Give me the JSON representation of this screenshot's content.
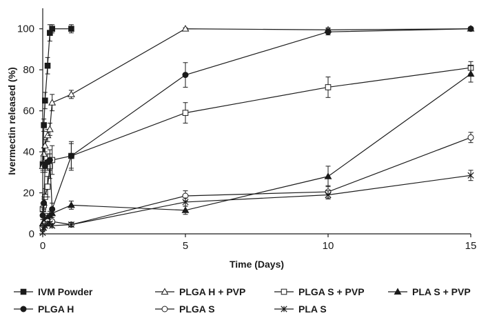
{
  "chart_data": {
    "type": "line",
    "xlabel": "Time (Days)",
    "ylabel": "Ivermectin released (%)",
    "xlim": [
      0,
      15
    ],
    "ylim": [
      0,
      110
    ],
    "xticks": [
      "0",
      "5",
      "10",
      "15"
    ],
    "yticks": [
      "0",
      "20",
      "40",
      "60",
      "80",
      "100"
    ],
    "grid": false,
    "legend_position": "bottom",
    "series": [
      {
        "name": "IVM Powder",
        "marker": "filled-square",
        "x": [
          0,
          0.04,
          0.08,
          0.17,
          0.25,
          0.33,
          1
        ],
        "y": [
          34,
          53,
          65,
          82,
          98,
          100,
          100
        ],
        "err": [
          3,
          3,
          4,
          4,
          4,
          2,
          2
        ]
      },
      {
        "name": "PLGA H + PVP",
        "marker": "open-triangle",
        "x": [
          0,
          0.04,
          0.08,
          0.17,
          0.25,
          0.33,
          1,
          5,
          10,
          15
        ],
        "y": [
          33,
          39,
          43,
          48,
          51,
          64,
          68,
          100,
          99.5,
          100
        ],
        "err": [
          3,
          3,
          3,
          3,
          3,
          4,
          2,
          0.5,
          1,
          0.5
        ]
      },
      {
        "name": "PLGA S + PVP",
        "marker": "open-square",
        "x": [
          0,
          0.04,
          0.08,
          0.17,
          0.25,
          0.33,
          1,
          5,
          10,
          15
        ],
        "y": [
          12,
          14,
          18,
          23,
          33,
          36,
          38,
          59,
          71.5,
          81
        ],
        "err": [
          3,
          3,
          4,
          5,
          6,
          7,
          6,
          5,
          5,
          3
        ]
      },
      {
        "name": "PLA S + PVP",
        "marker": "filled-triangle",
        "x": [
          0,
          0.04,
          0.08,
          0.17,
          0.25,
          0.33,
          1,
          5,
          10,
          15
        ],
        "y": [
          5,
          6,
          7,
          8,
          9,
          10,
          14,
          11.5,
          28,
          78
        ],
        "err": [
          2,
          2,
          2,
          2,
          2,
          2,
          2,
          2,
          5,
          4
        ]
      },
      {
        "name": "PLGA H",
        "marker": "filled-circle",
        "x": [
          0,
          0.04,
          0.08,
          0.17,
          0.25,
          0.33,
          1,
          5,
          10,
          15
        ],
        "y": [
          9,
          15,
          33,
          35,
          36,
          12,
          38,
          77.5,
          98.5,
          100
        ],
        "err": [
          2,
          3,
          3,
          4,
          5,
          3,
          7,
          6,
          1.5,
          0.5
        ]
      },
      {
        "name": "PLGA S",
        "marker": "open-circle",
        "x": [
          0,
          0.04,
          0.08,
          0.17,
          0.25,
          0.33,
          1,
          5,
          10,
          15
        ],
        "y": [
          3,
          4,
          5,
          6,
          5,
          6,
          4.5,
          18.5,
          20.5,
          47
        ],
        "err": [
          1,
          1,
          1,
          1,
          1,
          1,
          1,
          2.5,
          3,
          2.5
        ]
      },
      {
        "name": "PLA S",
        "marker": "asterisk",
        "x": [
          0,
          0.04,
          0.08,
          0.17,
          0.25,
          0.33,
          1,
          5,
          10,
          15
        ],
        "y": [
          0.5,
          3,
          4,
          5,
          5,
          4,
          4.5,
          15.5,
          19,
          28.5
        ],
        "err": [
          0.5,
          1,
          1,
          1,
          1,
          1,
          1,
          2,
          2,
          2.5
        ]
      }
    ]
  }
}
